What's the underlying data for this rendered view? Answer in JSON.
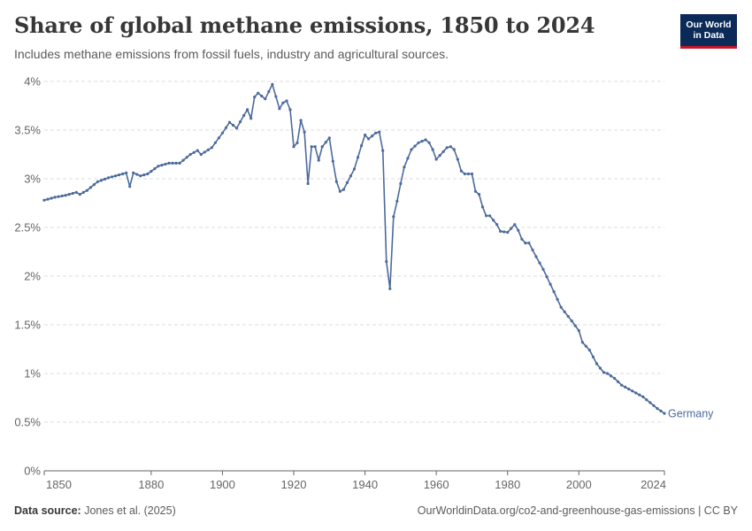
{
  "header": {
    "title": "Share of global methane emissions, 1850 to 2024",
    "subtitle": "Includes methane emissions from fossil fuels, industry and agricultural sources."
  },
  "logo": {
    "line1": "Our World",
    "line2": "in Data"
  },
  "footer": {
    "source_label": "Data source:",
    "source_text": "Jones et al. (2025)",
    "url_text": "OurWorldinData.org/co2-and-greenhouse-gas-emissions | CC BY"
  },
  "colors": {
    "series": "#4c6a9c",
    "grid": "#dddddd",
    "axis": "#666666"
  },
  "chart_data": {
    "type": "line",
    "title": "Share of global methane emissions, 1850 to 2024",
    "xlabel": "",
    "ylabel": "",
    "xlim": [
      1850,
      2024
    ],
    "ylim": [
      0,
      4
    ],
    "grid": true,
    "y_ticks": [
      0,
      0.5,
      1,
      1.5,
      2,
      2.5,
      3,
      3.5,
      4
    ],
    "y_tick_labels": [
      "0%",
      "0.5%",
      "1%",
      "1.5%",
      "2%",
      "2.5%",
      "3%",
      "3.5%",
      "4%"
    ],
    "x_ticks": [
      1850,
      1880,
      1900,
      1920,
      1940,
      1960,
      1980,
      2000,
      2024
    ],
    "x_tick_labels": [
      "1850",
      "1880",
      "1900",
      "1920",
      "1940",
      "1960",
      "1980",
      "2000",
      "2024"
    ],
    "series": [
      {
        "name": "Germany",
        "anchors": [
          [
            1850,
            2.78
          ],
          [
            1853,
            2.81
          ],
          [
            1856,
            2.83
          ],
          [
            1859,
            2.86
          ],
          [
            1860,
            2.84
          ],
          [
            1862,
            2.88
          ],
          [
            1865,
            2.97
          ],
          [
            1868,
            3.01
          ],
          [
            1872,
            3.05
          ],
          [
            1873,
            3.06
          ],
          [
            1874,
            2.92
          ],
          [
            1875,
            3.06
          ],
          [
            1877,
            3.03
          ],
          [
            1879,
            3.05
          ],
          [
            1882,
            3.13
          ],
          [
            1885,
            3.16
          ],
          [
            1888,
            3.16
          ],
          [
            1891,
            3.25
          ],
          [
            1893,
            3.29
          ],
          [
            1894,
            3.25
          ],
          [
            1897,
            3.32
          ],
          [
            1900,
            3.47
          ],
          [
            1902,
            3.58
          ],
          [
            1904,
            3.52
          ],
          [
            1906,
            3.65
          ],
          [
            1907,
            3.71
          ],
          [
            1908,
            3.62
          ],
          [
            1909,
            3.84
          ],
          [
            1910,
            3.88
          ],
          [
            1911,
            3.85
          ],
          [
            1912,
            3.82
          ],
          [
            1914,
            3.97
          ],
          [
            1916,
            3.72
          ],
          [
            1917,
            3.78
          ],
          [
            1918,
            3.8
          ],
          [
            1919,
            3.71
          ],
          [
            1920,
            3.33
          ],
          [
            1921,
            3.37
          ],
          [
            1922,
            3.6
          ],
          [
            1923,
            3.48
          ],
          [
            1924,
            2.95
          ],
          [
            1925,
            3.33
          ],
          [
            1926,
            3.33
          ],
          [
            1927,
            3.19
          ],
          [
            1928,
            3.33
          ],
          [
            1930,
            3.42
          ],
          [
            1931,
            3.18
          ],
          [
            1932,
            2.97
          ],
          [
            1933,
            2.87
          ],
          [
            1934,
            2.89
          ],
          [
            1935,
            2.96
          ],
          [
            1937,
            3.1
          ],
          [
            1939,
            3.34
          ],
          [
            1940,
            3.45
          ],
          [
            1941,
            3.41
          ],
          [
            1943,
            3.47
          ],
          [
            1944,
            3.48
          ],
          [
            1945,
            3.29
          ],
          [
            1946,
            2.15
          ],
          [
            1947,
            1.87
          ],
          [
            1948,
            2.61
          ],
          [
            1949,
            2.77
          ],
          [
            1950,
            2.95
          ],
          [
            1951,
            3.12
          ],
          [
            1953,
            3.3
          ],
          [
            1955,
            3.37
          ],
          [
            1957,
            3.4
          ],
          [
            1958,
            3.37
          ],
          [
            1959,
            3.3
          ],
          [
            1960,
            3.2
          ],
          [
            1961,
            3.24
          ],
          [
            1963,
            3.32
          ],
          [
            1964,
            3.33
          ],
          [
            1965,
            3.3
          ],
          [
            1966,
            3.2
          ],
          [
            1967,
            3.08
          ],
          [
            1968,
            3.05
          ],
          [
            1970,
            3.05
          ],
          [
            1971,
            2.87
          ],
          [
            1972,
            2.84
          ],
          [
            1973,
            2.71
          ],
          [
            1974,
            2.62
          ],
          [
            1975,
            2.62
          ],
          [
            1977,
            2.53
          ],
          [
            1978,
            2.46
          ],
          [
            1980,
            2.45
          ],
          [
            1982,
            2.53
          ],
          [
            1983,
            2.47
          ],
          [
            1984,
            2.38
          ],
          [
            1985,
            2.34
          ],
          [
            1986,
            2.34
          ],
          [
            1988,
            2.2
          ],
          [
            1990,
            2.07
          ],
          [
            1993,
            1.84
          ],
          [
            1995,
            1.68
          ],
          [
            1998,
            1.54
          ],
          [
            2000,
            1.44
          ],
          [
            2001,
            1.32
          ],
          [
            2003,
            1.24
          ],
          [
            2005,
            1.1
          ],
          [
            2007,
            1.01
          ],
          [
            2008,
            1.0
          ],
          [
            2010,
            0.95
          ],
          [
            2012,
            0.88
          ],
          [
            2015,
            0.82
          ],
          [
            2018,
            0.76
          ],
          [
            2020,
            0.7
          ],
          [
            2022,
            0.64
          ],
          [
            2024,
            0.59
          ]
        ]
      }
    ]
  }
}
